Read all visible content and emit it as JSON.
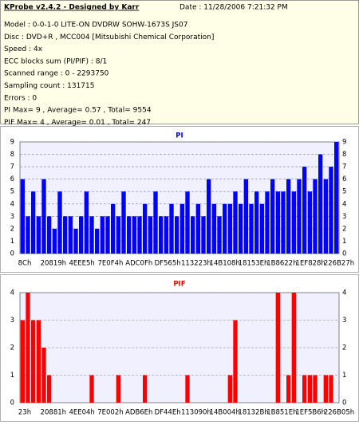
{
  "header": {
    "title": "KProbe v2.4.2 - Designed by Karr",
    "date": "Date : 11/28/2006 7:21:32 PM",
    "lines": [
      "Model : 0-0-1-0 LITE-ON DVDRW SOHW-1673S JS07",
      "Disc : DVD+R , MCC004 [Mitsubishi Chemical Corporation]",
      "Speed : 4x",
      "ECC blocks sum (PI/PIF) : 8/1",
      "Scanned range : 0 - 2293750",
      "Sampling count : 131715",
      "Errors : 0",
      "PI Max= 9 , Average= 0.57 , Total= 9554",
      "PIF Max= 4 , Average= 0.01 , Total= 247"
    ]
  },
  "chart_data": [
    {
      "type": "bar",
      "title": "PI",
      "color": "#0000ff",
      "grid": true,
      "ylim": [
        0,
        9
      ],
      "yticks": [
        0,
        1,
        2,
        3,
        4,
        5,
        6,
        7,
        8,
        9
      ],
      "x_labels": [
        "8Ch",
        "20819h",
        "4EEE5h",
        "7E0F4h",
        "ADC0Fh",
        "DF565h",
        "113223h",
        "14B108h",
        "18153Eh",
        "1B8622h",
        "1EF828h",
        "226B27h"
      ],
      "values": [
        6,
        3,
        5,
        3,
        6,
        3,
        2,
        5,
        3,
        3,
        2,
        3,
        5,
        3,
        2,
        3,
        3,
        4,
        3,
        5,
        3,
        3,
        3,
        4,
        3,
        5,
        3,
        3,
        4,
        3,
        4,
        5,
        3,
        4,
        3,
        6,
        4,
        3,
        4,
        4,
        5,
        4,
        6,
        4,
        5,
        4,
        5,
        6,
        5,
        5,
        6,
        5,
        6,
        7,
        5,
        6,
        8,
        6,
        7,
        9
      ]
    },
    {
      "type": "bar",
      "title": "PIF",
      "color": "#ff0000",
      "grid": true,
      "ylim": [
        0,
        4
      ],
      "yticks": [
        0,
        1,
        2,
        3,
        4
      ],
      "x_labels": [
        "23h",
        "20881h",
        "4EE04h",
        "7E002h",
        "ADB6Eh",
        "DF44Eh",
        "113090h",
        "14B004h",
        "18132Bh",
        "1B851Eh",
        "1EF5B6h",
        "226B05h"
      ],
      "values": [
        3,
        4,
        3,
        3,
        2,
        1,
        0,
        0,
        0,
        0,
        0,
        0,
        0,
        1,
        0,
        0,
        0,
        0,
        1,
        0,
        0,
        0,
        0,
        1,
        0,
        0,
        0,
        0,
        0,
        0,
        0,
        1,
        0,
        0,
        0,
        0,
        0,
        0,
        0,
        1,
        3,
        0,
        0,
        0,
        0,
        0,
        0,
        0,
        4,
        0,
        1,
        4,
        0,
        1,
        1,
        1,
        0,
        1,
        1,
        0
      ]
    }
  ]
}
